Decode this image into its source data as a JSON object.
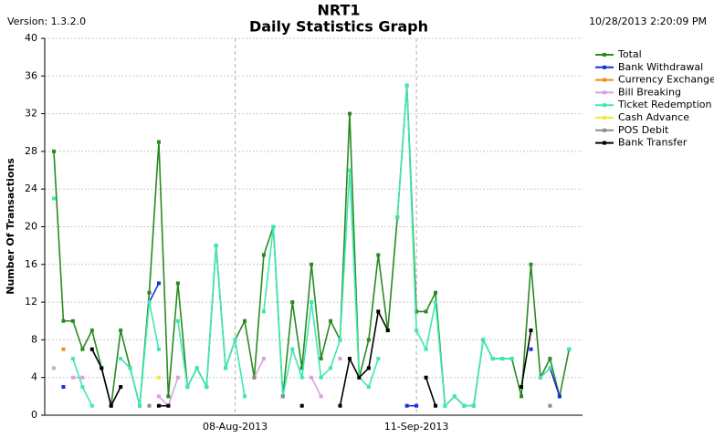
{
  "chart_data": {
    "type": "line",
    "title": "NRT1",
    "subtitle": "Daily Statistics Graph",
    "version_label": "Version: 1.3.2.0",
    "timestamp": "10/28/2013 2:20:09 PM",
    "y_label": "Number Of Transactions",
    "ylim": [
      0,
      40
    ],
    "yticks": [
      0,
      4,
      8,
      12,
      16,
      20,
      24,
      28,
      32,
      36,
      40
    ],
    "grid": true,
    "legend": "right",
    "categories": [
      null,
      null,
      null,
      null,
      null,
      null,
      null,
      null,
      null,
      null,
      null,
      null,
      null,
      null,
      null,
      null,
      null,
      null,
      null,
      "08-Aug-2013",
      null,
      null,
      null,
      null,
      null,
      null,
      null,
      null,
      null,
      null,
      null,
      null,
      null,
      null,
      null,
      null,
      null,
      null,
      "11-Sep-2013",
      null,
      null,
      null,
      null,
      null,
      null,
      null,
      null,
      null,
      null,
      null,
      null,
      null,
      null,
      null,
      null
    ],
    "series": [
      {
        "name": "Total",
        "color": "#2a8a22",
        "values": [
          28,
          10,
          10,
          7,
          9,
          5,
          1,
          9,
          5,
          1,
          13,
          29,
          2,
          14,
          3,
          5,
          3,
          18,
          5,
          8,
          10,
          4,
          17,
          20,
          2,
          12,
          5,
          16,
          6,
          10,
          8,
          32,
          4,
          8,
          17,
          9,
          21,
          35,
          11,
          11,
          13,
          1,
          2,
          1,
          1,
          8,
          6,
          6,
          6,
          2,
          16,
          4,
          6,
          2,
          7
        ]
      },
      {
        "name": "Bank Withdrawal",
        "color": "#1a2ee0",
        "values": [
          null,
          3,
          null,
          null,
          null,
          null,
          null,
          null,
          null,
          null,
          12,
          14,
          null,
          null,
          null,
          null,
          null,
          null,
          null,
          null,
          null,
          null,
          null,
          null,
          null,
          null,
          null,
          null,
          null,
          null,
          null,
          null,
          null,
          null,
          null,
          null,
          null,
          1,
          1,
          null,
          null,
          null,
          null,
          null,
          null,
          null,
          null,
          null,
          null,
          null,
          7,
          null,
          5,
          2,
          null
        ]
      },
      {
        "name": "Currency Exchange",
        "color": "#f08c1c",
        "values": [
          null,
          7,
          null,
          null,
          null,
          null,
          null,
          null,
          null,
          null,
          null,
          null,
          null,
          null,
          3,
          null,
          null,
          null,
          null,
          null,
          null,
          null,
          null,
          null,
          null,
          null,
          null,
          null,
          null,
          null,
          null,
          null,
          null,
          null,
          null,
          null,
          null,
          null,
          null,
          null,
          null,
          null,
          null,
          null,
          null,
          null,
          null,
          null,
          null,
          null,
          null,
          null,
          null,
          null,
          null
        ]
      },
      {
        "name": "Bill Breaking",
        "color": "#d9a0e0",
        "values": [
          5,
          null,
          4,
          4,
          null,
          null,
          null,
          null,
          null,
          null,
          null,
          2,
          1,
          4,
          null,
          null,
          null,
          null,
          null,
          8,
          null,
          4,
          6,
          null,
          2,
          null,
          null,
          4,
          2,
          null,
          6,
          null,
          null,
          null,
          null,
          null,
          null,
          null,
          null,
          null,
          null,
          null,
          null,
          null,
          null,
          null,
          null,
          null,
          null,
          null,
          null,
          null,
          null,
          null,
          null
        ]
      },
      {
        "name": "Ticket Redemption",
        "color": "#3ee8b0",
        "values": [
          23,
          null,
          6,
          3,
          1,
          null,
          null,
          6,
          5,
          1,
          12,
          7,
          null,
          10,
          3,
          5,
          3,
          18,
          5,
          8,
          2,
          null,
          11,
          20,
          2,
          7,
          4,
          12,
          4,
          5,
          8,
          26,
          4,
          3,
          6,
          null,
          21,
          35,
          9,
          7,
          12,
          1,
          2,
          1,
          1,
          8,
          6,
          6,
          6,
          null,
          null,
          4,
          5,
          null,
          7
        ]
      },
      {
        "name": "Cash Advance",
        "color": "#f2e640",
        "values": [
          null,
          null,
          null,
          null,
          null,
          null,
          null,
          null,
          null,
          null,
          null,
          4,
          null,
          null,
          null,
          null,
          null,
          null,
          null,
          null,
          null,
          null,
          null,
          null,
          null,
          null,
          null,
          null,
          null,
          null,
          null,
          null,
          null,
          null,
          null,
          null,
          null,
          null,
          null,
          null,
          null,
          null,
          null,
          null,
          null,
          null,
          null,
          null,
          null,
          null,
          null,
          null,
          null,
          null,
          null
        ]
      },
      {
        "name": "POS Debit",
        "color": "#8c8c8c",
        "values": [
          null,
          null,
          null,
          null,
          null,
          null,
          null,
          null,
          null,
          null,
          1,
          null,
          null,
          null,
          null,
          null,
          null,
          null,
          null,
          null,
          null,
          4,
          null,
          null,
          2,
          null,
          null,
          null,
          null,
          null,
          null,
          null,
          null,
          null,
          null,
          null,
          null,
          null,
          null,
          null,
          null,
          null,
          null,
          null,
          null,
          null,
          null,
          null,
          null,
          null,
          null,
          null,
          1,
          null,
          null
        ]
      },
      {
        "name": "Bank Transfer",
        "color": "#000000",
        "values": [
          null,
          null,
          null,
          null,
          7,
          5,
          1,
          3,
          null,
          null,
          null,
          1,
          1,
          null,
          null,
          null,
          null,
          null,
          null,
          null,
          null,
          null,
          null,
          null,
          null,
          null,
          1,
          null,
          null,
          null,
          1,
          6,
          4,
          5,
          11,
          9,
          null,
          null,
          null,
          4,
          1,
          null,
          null,
          null,
          null,
          null,
          null,
          null,
          null,
          3,
          9,
          null,
          null,
          null,
          null
        ]
      }
    ]
  }
}
